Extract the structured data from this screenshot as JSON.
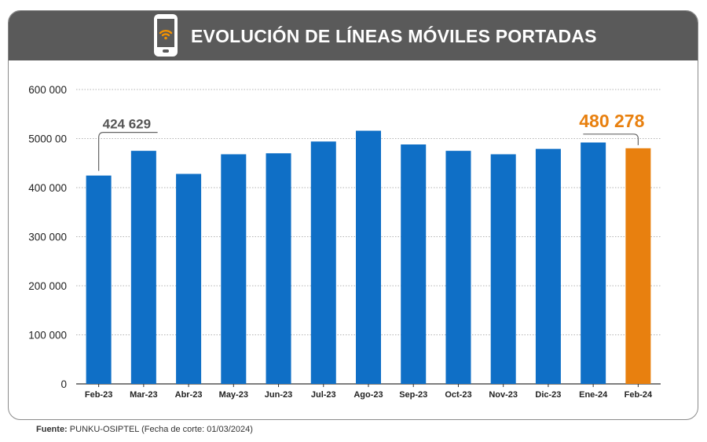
{
  "header": {
    "title": "EVOLUCIÓN DE LÍNEAS MÓVILES PORTADAS",
    "icon": "smartphone-wifi-icon"
  },
  "footer": {
    "source_label": "Fuente:",
    "source_text": "PUNKU-OSIPTEL (Fecha de corte: 01/03/2024)"
  },
  "colors": {
    "bar": "#0f6fc6",
    "highlight": "#e8800f",
    "header_bg": "#5a5a5a"
  },
  "chart_data": {
    "type": "bar",
    "title": "EVOLUCIÓN DE LÍNEAS MÓVILES PORTADAS",
    "xlabel": "",
    "ylabel": "",
    "ylim": [
      0,
      600000
    ],
    "grid": true,
    "y_ticks": [
      {
        "value": 0,
        "label": "0"
      },
      {
        "value": 100000,
        "label": "100 000"
      },
      {
        "value": 200000,
        "label": "200 000"
      },
      {
        "value": 300000,
        "label": "300 000"
      },
      {
        "value": 400000,
        "label": "400 000"
      },
      {
        "value": 500000,
        "label": "5000 00"
      },
      {
        "value": 600000,
        "label": "600 000"
      }
    ],
    "categories": [
      "Feb-23",
      "Mar-23",
      "Abr-23",
      "May-23",
      "Jun-23",
      "Jul-23",
      "Ago-23",
      "Sep-23",
      "Oct-23",
      "Nov-23",
      "Dic-23",
      "Ene-24",
      "Feb-24"
    ],
    "values": [
      424629,
      475000,
      428000,
      468000,
      470000,
      494000,
      516000,
      488000,
      475000,
      468000,
      479000,
      492000,
      480278
    ],
    "highlight_index": 12,
    "annotations": [
      {
        "index": 0,
        "text": "424 629",
        "color": "#555555"
      },
      {
        "index": 12,
        "text": "480 278",
        "color": "#e8800f"
      }
    ]
  }
}
